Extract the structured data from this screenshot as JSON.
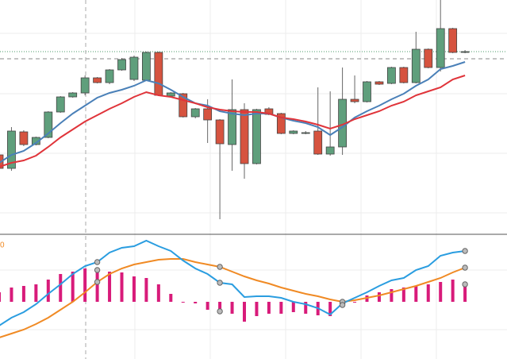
{
  "chart_data": [
    {
      "type": "candlestick",
      "open": [
        100,
        83,
        129,
        113,
        122,
        154,
        173,
        178,
        197,
        191,
        207,
        195,
        194,
        229,
        174,
        177,
        148,
        158,
        144,
        113,
        157,
        89,
        158,
        152,
        127,
        128,
        130,
        101,
        110,
        170,
        167,
        192,
        190,
        210,
        191,
        233,
        210,
        259,
        229
      ],
      "high": [
        100,
        135,
        131,
        123,
        155,
        174,
        179,
        200,
        198,
        208,
        222,
        225,
        230,
        230,
        179,
        178,
        159,
        170,
        145,
        195,
        165,
        158,
        160,
        153,
        131,
        130,
        185,
        180,
        210,
        200,
        193,
        193,
        211,
        211,
        255,
        234,
        295,
        260,
        232
      ],
      "low": [
        83,
        80,
        111,
        112,
        121,
        153,
        172,
        175,
        190,
        189,
        206,
        193,
        193,
        174,
        172,
        147,
        146,
        115,
        19,
        80,
        70,
        88,
        150,
        126,
        126,
        126,
        100,
        99,
        100,
        165,
        166,
        188,
        189,
        190,
        190,
        209,
        205,
        228,
        228
      ],
      "close": [
        83,
        130,
        113,
        122,
        154,
        173,
        178,
        197,
        191,
        207,
        220,
        223,
        229,
        175,
        178,
        148,
        158,
        144,
        114,
        157,
        89,
        157,
        151,
        127,
        130,
        128,
        101,
        110,
        170,
        167,
        192,
        189,
        210,
        191,
        233,
        210,
        259,
        229,
        230
      ],
      "up_color": "#5f9f7c",
      "down_color": "#d6533f",
      "lines": [
        {
          "color": "#4a80b8",
          "values": [
            90,
            100,
            105,
            115,
            127,
            140,
            152,
            162,
            172,
            178,
            182,
            187,
            194,
            190,
            182,
            173,
            165,
            162,
            155,
            152,
            150,
            152,
            152,
            147,
            143,
            140,
            135,
            125,
            135,
            147,
            155,
            162,
            170,
            177,
            187,
            195,
            208,
            212,
            217
          ]
        },
        {
          "color": "#e0343a",
          "values": [
            85,
            90,
            93,
            99,
            110,
            122,
            132,
            142,
            150,
            158,
            165,
            173,
            179,
            175,
            173,
            169,
            165,
            160,
            157,
            155,
            154,
            154,
            152,
            147,
            145,
            142,
            138,
            133,
            138,
            145,
            150,
            155,
            162,
            167,
            175,
            180,
            185,
            195,
            200
          ]
        }
      ],
      "ylim": [
        0,
        295
      ]
    },
    {
      "type": "macd",
      "label": "0",
      "macd": {
        "color": "#2a9de0",
        "values": [
          -30,
          -20,
          -13,
          -3,
          10,
          22,
          35,
          45,
          50,
          62,
          68,
          70,
          77,
          70,
          64,
          52,
          42,
          35,
          24,
          22,
          6,
          7,
          7,
          5,
          0,
          -3,
          -8,
          -16,
          -2,
          5,
          12,
          20,
          27,
          30,
          40,
          45,
          58,
          62,
          64
        ]
      },
      "signal": {
        "color": "#f08a24",
        "values": [
          -45,
          -40,
          -35,
          -28,
          -20,
          -10,
          0,
          12,
          25,
          35,
          42,
          47,
          50,
          53,
          54,
          54,
          50,
          47,
          44,
          38,
          32,
          27,
          23,
          18,
          14,
          10,
          7,
          3,
          0,
          2,
          5,
          8,
          12,
          16,
          20,
          25,
          30,
          37,
          43
        ]
      },
      "histogram": {
        "color": "#d81b7a",
        "values": [
          12,
          18,
          20,
          22,
          28,
          35,
          38,
          42,
          40,
          38,
          37,
          32,
          30,
          22,
          10,
          0,
          -2,
          -10,
          -12,
          -15,
          -25,
          -18,
          -15,
          -15,
          -13,
          -15,
          -17,
          -18,
          -4,
          0,
          8,
          12,
          16,
          18,
          20,
          22,
          25,
          28,
          22
        ]
      },
      "ylim": [
        -72,
        85
      ]
    }
  ]
}
